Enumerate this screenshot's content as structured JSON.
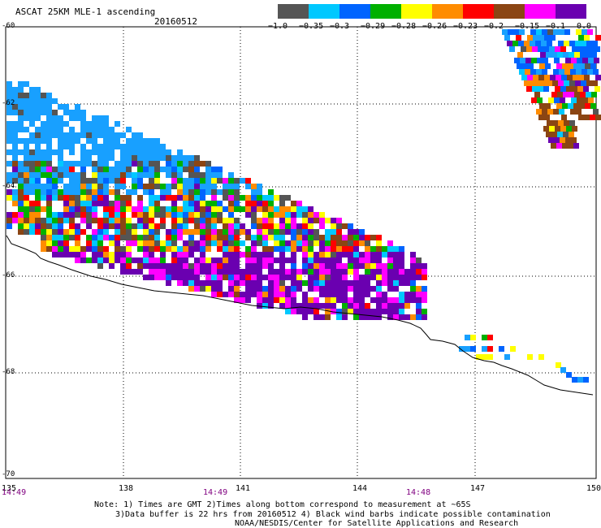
{
  "header": {
    "title": "ASCAT 25KM MLE-1 ascending",
    "date": "20160512"
  },
  "colorbar": {
    "colors": [
      "#555555",
      "#00c8ff",
      "#0064ff",
      "#00b000",
      "#ffff00",
      "#ff8c00",
      "#ff0000",
      "#8b4513",
      "#ff00ff",
      "#6a00b0"
    ],
    "labels": [
      "−1.0",
      "−0.35",
      "−0.3",
      "−0.29",
      "−0.28",
      "−0.26",
      "−0.23",
      "−0.2",
      "−0.15",
      "−0.1",
      "0.0"
    ]
  },
  "axes": {
    "lat_labels": [
      "-60",
      "-62",
      "-64",
      "-66",
      "-68",
      "-70"
    ],
    "lon_labels": [
      "135",
      "138",
      "141",
      "144",
      "147",
      "150"
    ]
  },
  "time_labels": [
    "14:49",
    "14:49",
    "14:48"
  ],
  "notes": {
    "line1": "Note: 1) Times are GMT 2)Times along bottom correspond to measurement at ~65S",
    "line2": "3)Data buffer is 22 hrs from 20160512 4) Black wind barbs indicate possible contamination",
    "line3": "NOAA/NESDIS/Center for Satellite Applications and Research"
  }
}
